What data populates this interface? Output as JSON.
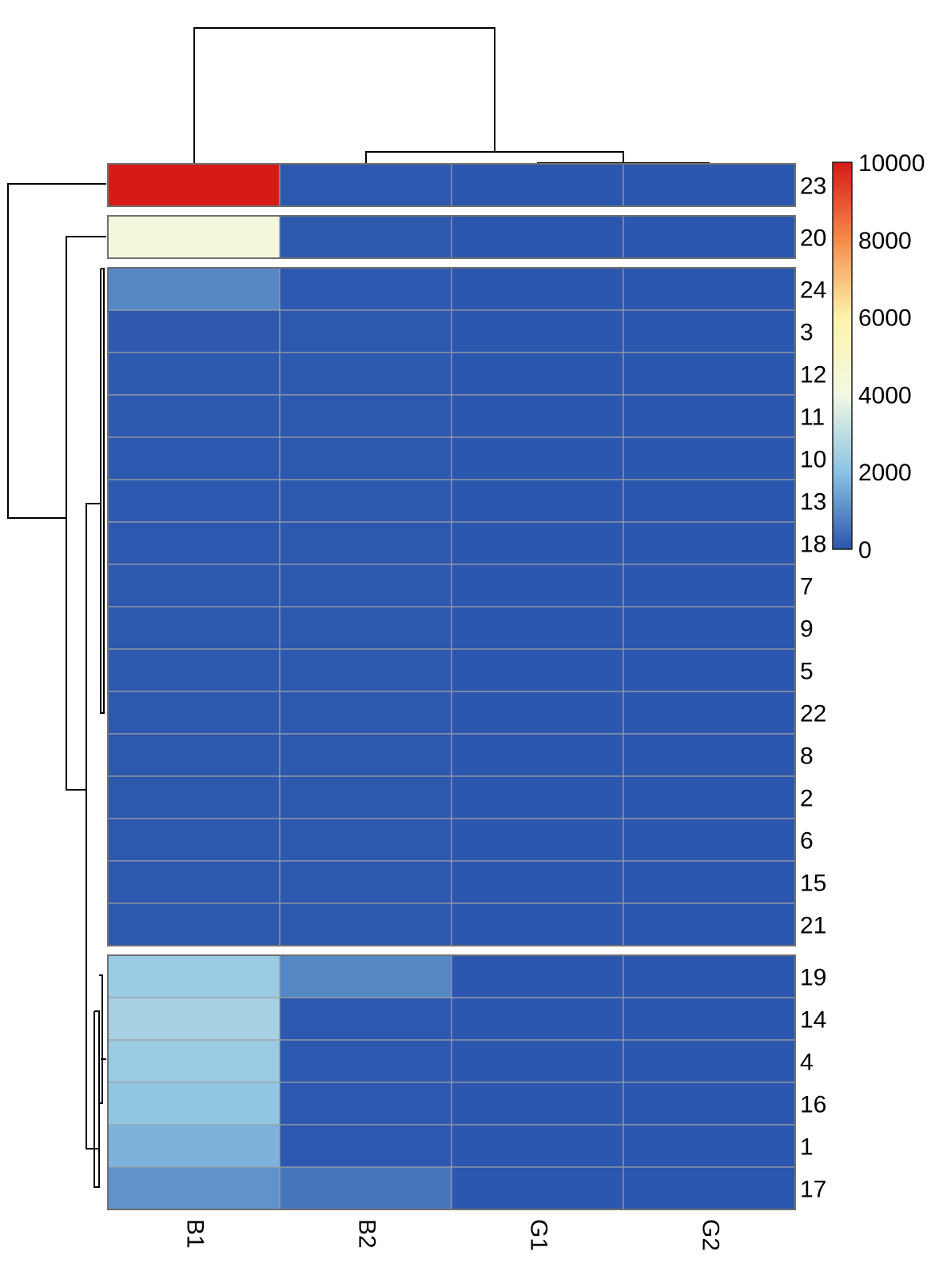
{
  "chart_data": {
    "type": "heatmap",
    "title": "",
    "columns": [
      "B1",
      "B2",
      "G1",
      "G2"
    ],
    "rows": [
      {
        "label": "23",
        "values": [
          10000,
          60,
          40,
          40
        ]
      },
      {
        "label": "20",
        "values": [
          4200,
          50,
          40,
          40
        ]
      },
      {
        "label": "24",
        "values": [
          900,
          60,
          40,
          40
        ]
      },
      {
        "label": "3",
        "values": [
          80,
          50,
          40,
          40
        ]
      },
      {
        "label": "12",
        "values": [
          70,
          50,
          40,
          40
        ]
      },
      {
        "label": "11",
        "values": [
          70,
          50,
          40,
          40
        ]
      },
      {
        "label": "10",
        "values": [
          60,
          50,
          40,
          40
        ]
      },
      {
        "label": "13",
        "values": [
          60,
          50,
          40,
          40
        ]
      },
      {
        "label": "18",
        "values": [
          60,
          50,
          40,
          40
        ]
      },
      {
        "label": "7",
        "values": [
          50,
          50,
          40,
          40
        ]
      },
      {
        "label": "9",
        "values": [
          50,
          50,
          40,
          40
        ]
      },
      {
        "label": "5",
        "values": [
          50,
          50,
          40,
          40
        ]
      },
      {
        "label": "22",
        "values": [
          50,
          50,
          40,
          40
        ]
      },
      {
        "label": "8",
        "values": [
          50,
          50,
          40,
          40
        ]
      },
      {
        "label": "2",
        "values": [
          50,
          50,
          40,
          40
        ]
      },
      {
        "label": "6",
        "values": [
          50,
          50,
          40,
          40
        ]
      },
      {
        "label": "15",
        "values": [
          50,
          50,
          40,
          40
        ]
      },
      {
        "label": "21",
        "values": [
          50,
          50,
          40,
          40
        ]
      },
      {
        "label": "19",
        "values": [
          2300,
          900,
          40,
          40
        ]
      },
      {
        "label": "14",
        "values": [
          2500,
          60,
          40,
          40
        ]
      },
      {
        "label": "4",
        "values": [
          2300,
          60,
          40,
          40
        ]
      },
      {
        "label": "16",
        "values": [
          2100,
          60,
          40,
          40
        ]
      },
      {
        "label": "1",
        "values": [
          1700,
          60,
          40,
          40
        ]
      },
      {
        "label": "17",
        "values": [
          1100,
          600,
          40,
          40
        ]
      }
    ],
    "row_groups": [
      1,
      1,
      16,
      6
    ],
    "color_scale": {
      "min": 0,
      "max": 10000,
      "ticks": [
        0,
        2000,
        4000,
        6000,
        8000,
        10000
      ],
      "stops": [
        {
          "value": 0,
          "color": "#2a55ad"
        },
        {
          "value": 2000,
          "color": "#8cc3e3"
        },
        {
          "value": 4000,
          "color": "#f2f9e3"
        },
        {
          "value": 6000,
          "color": "#fdf3ab"
        },
        {
          "value": 8000,
          "color": "#f68b4a"
        },
        {
          "value": 10000,
          "color": "#d61a16"
        }
      ]
    },
    "legend_position": "top-right",
    "row_dendrogram": true,
    "column_dendrogram": true
  }
}
